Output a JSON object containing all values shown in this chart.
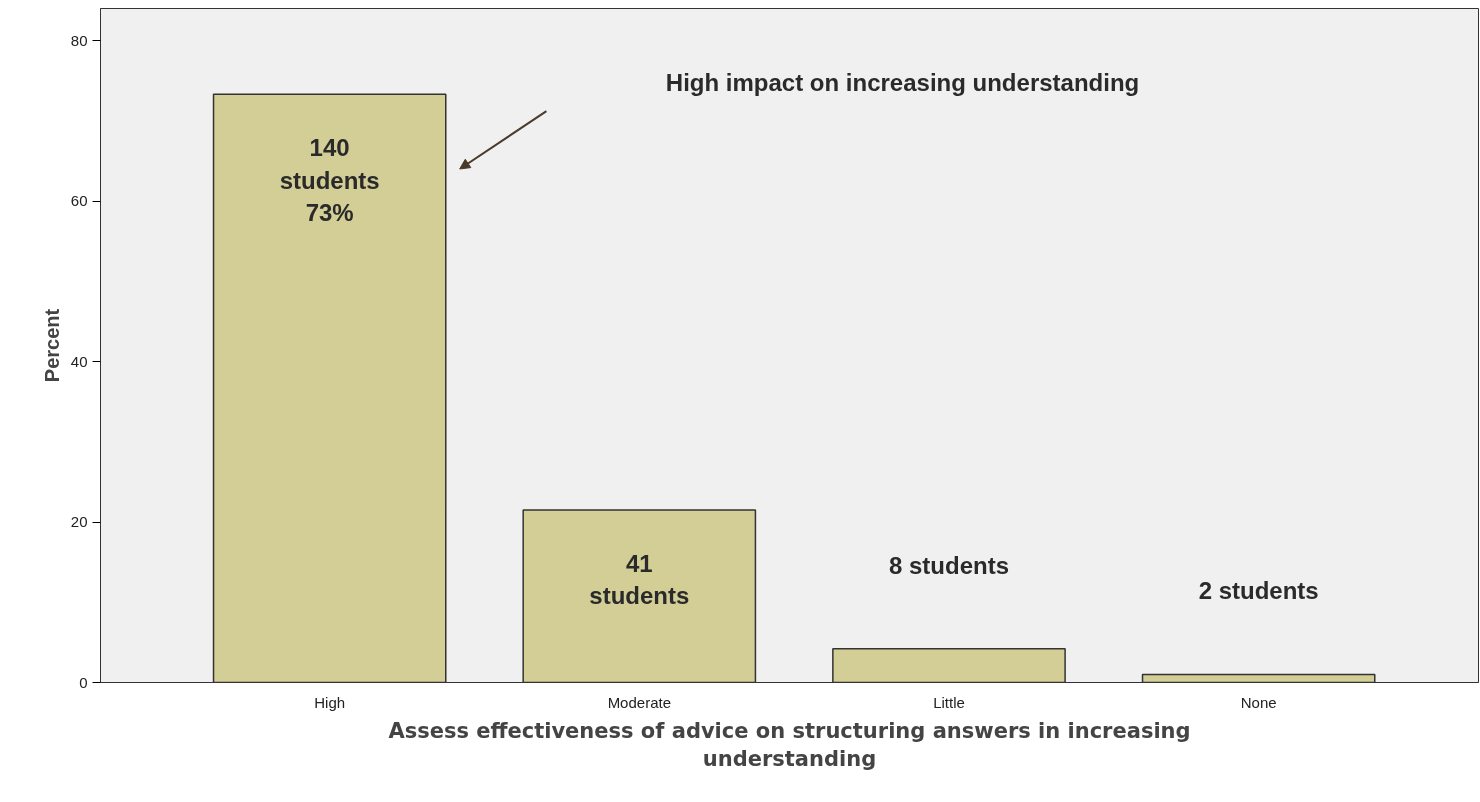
{
  "chart_data": {
    "type": "bar",
    "xlabel": "Assess effectiveness of advice on structuring answers in increasing understanding",
    "ylabel": "Percent",
    "categories": [
      "High",
      "Moderate",
      "Little",
      "None"
    ],
    "values": [
      73.3,
      21.5,
      4.2,
      1.0
    ],
    "color": "#d3cd96",
    "ylim": [
      0,
      84
    ],
    "yticks": [
      0,
      20,
      40,
      60,
      80
    ],
    "grid": false,
    "annotations": [
      "High impact on increasing understanding",
      {
        "text": "140\nstudents\n73%",
        "x": "High",
        "y": 73.3
      },
      {
        "text": "41\nstudents",
        "x": "Moderate",
        "y": 21.5
      },
      {
        "text": "8 students",
        "x": "Little",
        "y": 4.2
      },
      {
        "text": "2 students",
        "x": "None",
        "y": 1.0
      }
    ]
  }
}
